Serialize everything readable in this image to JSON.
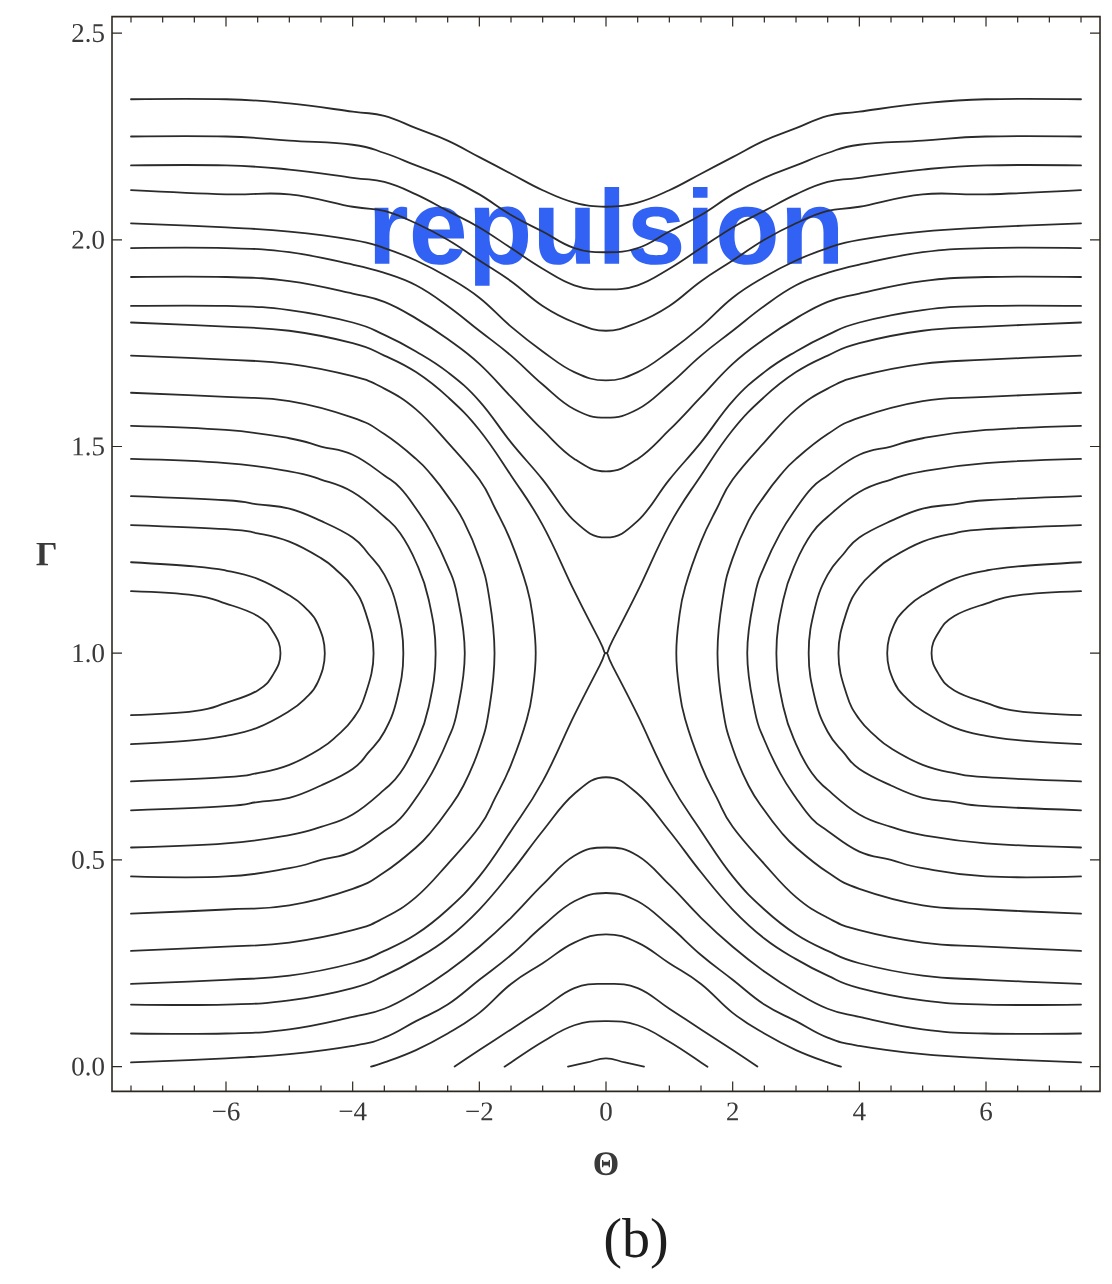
{
  "chart_data": {
    "type": "line",
    "xlabel": "Θ",
    "ylabel": "Γ",
    "annotations": [
      "repulsion",
      "(b)"
    ],
    "xlim": [
      -7.8,
      7.8
    ],
    "ylim": [
      -0.06,
      2.54
    ],
    "xticks": [
      {
        "value": -7.5,
        "label": null
      },
      {
        "value": -7,
        "label": null
      },
      {
        "value": -6.5,
        "label": null
      },
      {
        "value": -6,
        "label": "−6"
      },
      {
        "value": -5.5,
        "label": null
      },
      {
        "value": -5,
        "label": null
      },
      {
        "value": -4.5,
        "label": null
      },
      {
        "value": -4,
        "label": "−4"
      },
      {
        "value": -3.5,
        "label": null
      },
      {
        "value": -3,
        "label": null
      },
      {
        "value": -2.5,
        "label": null
      },
      {
        "value": -2,
        "label": "−2"
      },
      {
        "value": -1.5,
        "label": null
      },
      {
        "value": -1,
        "label": null
      },
      {
        "value": -0.5,
        "label": null
      },
      0,
      {
        "value": 0.5,
        "label": null
      },
      {
        "value": 1,
        "label": null
      },
      {
        "value": 1.5,
        "label": null
      },
      2,
      {
        "value": 2.5,
        "label": null
      },
      {
        "value": 3,
        "label": null
      },
      {
        "value": 3.5,
        "label": null
      },
      4,
      {
        "value": 4.5,
        "label": null
      },
      {
        "value": 5,
        "label": null
      },
      {
        "value": 5.5,
        "label": null
      },
      6,
      {
        "value": 6.5,
        "label": null
      },
      {
        "value": 7,
        "label": null
      },
      {
        "value": 7.5,
        "label": null
      }
    ],
    "yticks": [
      {
        "value": 0,
        "label": "0.0"
      },
      {
        "value": 0.5,
        "label": "0.5"
      },
      {
        "value": 1,
        "label": "1.0"
      },
      {
        "value": 1.5,
        "label": "1.5"
      },
      {
        "value": 2,
        "label": "2.0"
      },
      {
        "value": 2.5,
        "label": "2.5"
      }
    ],
    "color": "#2b2b2b",
    "x": [
      -7.5,
      -6,
      -5,
      -4,
      -3.5,
      -3,
      -2.5,
      -2,
      -1.5,
      -1,
      -0.5,
      0,
      0.5,
      1,
      1.5,
      2,
      2.5,
      3,
      3.5,
      4,
      5,
      6,
      7.5
    ],
    "series": [
      {
        "values": [
          2.34,
          2.34,
          2.33,
          2.31,
          2.3,
          2.27,
          2.24,
          2.2,
          2.16,
          2.12,
          2.09,
          2.08,
          2.09,
          2.12,
          2.16,
          2.2,
          2.24,
          2.27,
          2.3,
          2.31,
          2.33,
          2.34,
          2.34
        ]
      },
      {
        "values": [
          2.25,
          2.25,
          2.24,
          2.23,
          2.21,
          2.18,
          2.15,
          2.11,
          2.06,
          2.02,
          1.98,
          1.97,
          1.98,
          2.02,
          2.06,
          2.11,
          2.15,
          2.18,
          2.21,
          2.23,
          2.24,
          2.25,
          2.25
        ]
      },
      {
        "values": [
          2.18,
          2.18,
          2.17,
          2.15,
          2.14,
          2.11,
          2.07,
          2.03,
          1.98,
          1.93,
          1.89,
          1.88,
          1.89,
          1.93,
          1.98,
          2.03,
          2.07,
          2.11,
          2.14,
          2.15,
          2.17,
          2.18,
          2.18
        ]
      },
      {
        "values": [
          2.12,
          2.11,
          2.11,
          2.08,
          2.07,
          2.04,
          2.0,
          1.95,
          1.9,
          1.84,
          1.8,
          1.78,
          1.8,
          1.84,
          1.9,
          1.95,
          2.0,
          2.04,
          2.07,
          2.08,
          2.11,
          2.11,
          2.12
        ]
      },
      {
        "values": [
          2.04,
          2.03,
          2.02,
          2.0,
          1.98,
          1.95,
          1.91,
          1.86,
          1.79,
          1.73,
          1.68,
          1.66,
          1.68,
          1.73,
          1.79,
          1.86,
          1.91,
          1.95,
          1.98,
          2.0,
          2.02,
          2.03,
          2.04
        ]
      },
      {
        "values": [
          1.98,
          1.98,
          1.97,
          1.94,
          1.92,
          1.89,
          1.84,
          1.78,
          1.72,
          1.65,
          1.59,
          1.57,
          1.59,
          1.65,
          1.72,
          1.78,
          1.84,
          1.89,
          1.92,
          1.94,
          1.97,
          1.98,
          1.98
        ]
      },
      {
        "values": [
          1.91,
          1.91,
          1.9,
          1.87,
          1.85,
          1.81,
          1.76,
          1.7,
          1.62,
          1.54,
          1.47,
          1.44,
          1.47,
          1.54,
          1.62,
          1.7,
          1.76,
          1.81,
          1.85,
          1.87,
          1.9,
          1.91,
          1.91
        ]
      },
      {
        "values": [
          1.84,
          1.84,
          1.83,
          1.8,
          1.77,
          1.73,
          1.68,
          1.61,
          1.51,
          1.42,
          1.32,
          1.28,
          1.32,
          1.42,
          1.51,
          1.61,
          1.68,
          1.73,
          1.77,
          1.8,
          1.83,
          1.84,
          1.84
        ]
      },
      {
        "x": [
          -7.5,
          -6,
          -5,
          -4,
          -3.5,
          -3,
          -2.5,
          -2,
          -1.5,
          -1,
          -0.5,
          -0.1,
          0,
          0.1,
          0.5,
          1,
          1.5,
          2,
          2.5,
          3,
          3.5,
          4,
          5,
          6,
          7.5
        ],
        "values": [
          1.8,
          1.79,
          1.78,
          1.75,
          1.72,
          1.68,
          1.62,
          1.54,
          1.43,
          1.31,
          1.15,
          1.03,
          1.0,
          1.03,
          1.15,
          1.31,
          1.43,
          1.54,
          1.62,
          1.68,
          1.72,
          1.75,
          1.78,
          1.79,
          1.8
        ]
      },
      {
        "x": [
          -7.5,
          -6,
          -5,
          -4,
          -3.5,
          -3,
          -2.5,
          -2,
          -1.5,
          -1,
          -0.5,
          -0.1,
          0,
          0.1,
          0.5,
          1,
          1.5,
          2,
          2.5,
          3,
          3.5,
          4,
          5,
          6,
          7.5
        ],
        "values": [
          0.2,
          0.21,
          0.22,
          0.25,
          0.28,
          0.32,
          0.38,
          0.46,
          0.57,
          0.69,
          0.85,
          0.97,
          1.0,
          0.97,
          0.85,
          0.69,
          0.57,
          0.46,
          0.38,
          0.32,
          0.28,
          0.25,
          0.22,
          0.21,
          0.2
        ]
      },
      {
        "x": [
          -7.5,
          -6.5,
          -6,
          -5.5,
          -5.25,
          -5.14,
          -5.25,
          -5.5,
          -6,
          -6.5,
          -7.5
        ],
        "values": [
          1.15,
          1.14,
          1.12,
          1.09,
          1.05,
          1.0,
          0.95,
          0.91,
          0.88,
          0.86,
          0.85
        ]
      },
      {
        "x": [
          -7.5,
          -6.5,
          -6,
          -5.5,
          -5,
          -4.75,
          -4.55,
          -4.44,
          -4.55,
          -4.75,
          -5,
          -5.5,
          -6,
          -6.5,
          -7.5
        ],
        "values": [
          1.22,
          1.21,
          1.2,
          1.18,
          1.14,
          1.11,
          1.07,
          1.0,
          0.93,
          0.89,
          0.86,
          0.82,
          0.8,
          0.79,
          0.78
        ]
      },
      {
        "x": [
          -7.5,
          -6,
          -5.5,
          -5,
          -4.5,
          -4.25,
          -4,
          -3.8,
          -3.67,
          -3.8,
          -4,
          -4.25,
          -4.5,
          -5,
          -5.5,
          -6,
          -7.5
        ],
        "values": [
          1.31,
          1.3,
          1.29,
          1.27,
          1.23,
          1.2,
          1.16,
          1.1,
          1.0,
          0.9,
          0.84,
          0.8,
          0.77,
          0.73,
          0.71,
          0.7,
          0.69
        ]
      },
      {
        "x": [
          -7.5,
          -6,
          -5.5,
          -5,
          -4.5,
          -4,
          -3.75,
          -3.5,
          -3.3,
          -3.2,
          -3.3,
          -3.5,
          -3.75,
          -4,
          -4.5,
          -5,
          -5.5,
          -6,
          -7.5
        ],
        "values": [
          1.38,
          1.37,
          1.36,
          1.35,
          1.32,
          1.28,
          1.24,
          1.19,
          1.11,
          1.0,
          0.89,
          0.81,
          0.76,
          0.72,
          0.68,
          0.65,
          0.64,
          0.63,
          0.62
        ]
      },
      {
        "x": [
          -7.5,
          -6,
          -5,
          -4.5,
          -4,
          -3.5,
          -3.25,
          -3,
          -2.8,
          -2.69,
          -2.8,
          -3,
          -3.25,
          -3.5,
          -4,
          -4.5,
          -5,
          -6,
          -7.5
        ],
        "values": [
          1.47,
          1.46,
          1.44,
          1.42,
          1.39,
          1.33,
          1.29,
          1.22,
          1.13,
          1.0,
          0.87,
          0.78,
          0.71,
          0.67,
          0.61,
          0.58,
          0.56,
          0.54,
          0.53
        ]
      },
      {
        "x": [
          -7.5,
          -6,
          -5,
          -4.5,
          -4,
          -3.5,
          -3.25,
          -3,
          -2.75,
          -2.5,
          -2.35,
          -2.23,
          -2.35,
          -2.5,
          -2.75,
          -3,
          -3.25,
          -3.5,
          -4,
          -4.5,
          -5,
          -6,
          -7.5
        ],
        "values": [
          1.55,
          1.54,
          1.52,
          1.5,
          1.48,
          1.43,
          1.4,
          1.35,
          1.29,
          1.21,
          1.14,
          1.0,
          0.86,
          0.79,
          0.71,
          0.65,
          0.6,
          0.57,
          0.52,
          0.5,
          0.48,
          0.46,
          0.46
        ]
      },
      {
        "x": [
          -7.5,
          -6,
          -5,
          -4,
          -3.5,
          -3,
          -2.75,
          -2.5,
          -2.25,
          -2,
          -1.85,
          -1.76,
          -1.85,
          -2,
          -2.25,
          -2.5,
          -2.75,
          -3,
          -3.5,
          -4,
          -5,
          -6,
          -7.5
        ],
        "values": [
          1.63,
          1.62,
          1.61,
          1.57,
          1.53,
          1.47,
          1.43,
          1.38,
          1.32,
          1.23,
          1.14,
          1.0,
          0.86,
          0.77,
          0.68,
          0.62,
          0.57,
          0.53,
          0.47,
          0.43,
          0.39,
          0.38,
          0.37
        ]
      },
      {
        "x": [
          -7.5,
          -6,
          -5,
          -4,
          -3.5,
          -3,
          -2.5,
          -2,
          -1.75,
          -1.5,
          -1.25,
          -1.15,
          -1.11,
          -1.15,
          -1.25,
          -1.5,
          -1.75,
          -2,
          -2.5,
          -3,
          -3.5,
          -4,
          -5,
          -6,
          -7.5
        ],
        "values": [
          1.72,
          1.71,
          1.7,
          1.67,
          1.64,
          1.59,
          1.51,
          1.42,
          1.35,
          1.27,
          1.16,
          1.08,
          1.0,
          0.92,
          0.84,
          0.73,
          0.65,
          0.58,
          0.49,
          0.41,
          0.36,
          0.33,
          0.3,
          0.29,
          0.28
        ]
      },
      {
        "x": [
          7.5,
          6.5,
          6,
          5.5,
          5.25,
          5.14,
          5.25,
          5.5,
          6,
          6.5,
          7.5
        ],
        "values": [
          1.15,
          1.14,
          1.12,
          1.09,
          1.05,
          1.0,
          0.95,
          0.91,
          0.88,
          0.86,
          0.85
        ]
      },
      {
        "x": [
          7.5,
          6.5,
          6,
          5.5,
          5,
          4.75,
          4.55,
          4.44,
          4.55,
          4.75,
          5,
          5.5,
          6,
          6.5,
          7.5
        ],
        "values": [
          1.22,
          1.21,
          1.2,
          1.18,
          1.14,
          1.11,
          1.07,
          1.0,
          0.93,
          0.89,
          0.86,
          0.82,
          0.8,
          0.79,
          0.78
        ]
      },
      {
        "x": [
          7.5,
          6,
          5.5,
          5,
          4.5,
          4.25,
          4,
          3.8,
          3.67,
          3.8,
          4,
          4.25,
          4.5,
          5,
          5.5,
          6,
          7.5
        ],
        "values": [
          1.31,
          1.3,
          1.29,
          1.27,
          1.23,
          1.2,
          1.16,
          1.1,
          1.0,
          0.9,
          0.84,
          0.8,
          0.77,
          0.73,
          0.71,
          0.7,
          0.69
        ]
      },
      {
        "x": [
          7.5,
          6,
          5.5,
          5,
          4.5,
          4,
          3.75,
          3.5,
          3.3,
          3.2,
          3.3,
          3.5,
          3.75,
          4,
          4.5,
          5,
          5.5,
          6,
          7.5
        ],
        "values": [
          1.38,
          1.37,
          1.36,
          1.35,
          1.32,
          1.28,
          1.24,
          1.19,
          1.11,
          1.0,
          0.89,
          0.81,
          0.76,
          0.72,
          0.68,
          0.65,
          0.64,
          0.63,
          0.62
        ]
      },
      {
        "x": [
          7.5,
          6,
          5,
          4.5,
          4,
          3.5,
          3.25,
          3,
          2.8,
          2.69,
          2.8,
          3,
          3.25,
          3.5,
          4,
          4.5,
          5,
          6,
          7.5
        ],
        "values": [
          1.47,
          1.46,
          1.44,
          1.42,
          1.39,
          1.33,
          1.29,
          1.22,
          1.13,
          1.0,
          0.87,
          0.78,
          0.71,
          0.67,
          0.61,
          0.58,
          0.56,
          0.54,
          0.53
        ]
      },
      {
        "x": [
          7.5,
          6,
          5,
          4.5,
          4,
          3.5,
          3.25,
          3,
          2.75,
          2.5,
          2.35,
          2.23,
          2.35,
          2.5,
          2.75,
          3,
          3.25,
          3.5,
          4,
          4.5,
          5,
          6,
          7.5
        ],
        "values": [
          1.55,
          1.54,
          1.52,
          1.5,
          1.48,
          1.43,
          1.4,
          1.35,
          1.29,
          1.21,
          1.14,
          1.0,
          0.86,
          0.79,
          0.71,
          0.65,
          0.6,
          0.57,
          0.52,
          0.5,
          0.48,
          0.46,
          0.46
        ]
      },
      {
        "x": [
          7.5,
          6,
          5,
          4,
          3.5,
          3,
          2.75,
          2.5,
          2.25,
          2,
          1.85,
          1.76,
          1.85,
          2,
          2.25,
          2.5,
          2.75,
          3,
          3.5,
          4,
          5,
          6,
          7.5
        ],
        "values": [
          1.63,
          1.62,
          1.61,
          1.57,
          1.53,
          1.47,
          1.43,
          1.38,
          1.32,
          1.23,
          1.14,
          1.0,
          0.86,
          0.77,
          0.68,
          0.62,
          0.57,
          0.53,
          0.47,
          0.43,
          0.39,
          0.38,
          0.37
        ]
      },
      {
        "x": [
          7.5,
          6,
          5,
          4,
          3.5,
          3,
          2.5,
          2,
          1.75,
          1.5,
          1.25,
          1.15,
          1.11,
          1.15,
          1.25,
          1.5,
          1.75,
          2,
          2.5,
          3,
          3.5,
          4,
          5,
          6,
          7.5
        ],
        "values": [
          1.72,
          1.71,
          1.7,
          1.67,
          1.64,
          1.59,
          1.51,
          1.42,
          1.35,
          1.27,
          1.16,
          1.08,
          1.0,
          0.92,
          0.84,
          0.73,
          0.65,
          0.58,
          0.49,
          0.41,
          0.36,
          0.33,
          0.3,
          0.29,
          0.28
        ]
      },
      {
        "values": [
          0.15,
          0.15,
          0.16,
          0.19,
          0.22,
          0.26,
          0.31,
          0.38,
          0.47,
          0.57,
          0.66,
          0.7,
          0.66,
          0.57,
          0.47,
          0.38,
          0.31,
          0.26,
          0.22,
          0.19,
          0.16,
          0.15,
          0.15
        ]
      },
      {
        "values": [
          0.08,
          0.08,
          0.09,
          0.12,
          0.14,
          0.18,
          0.23,
          0.29,
          0.36,
          0.44,
          0.51,
          0.53,
          0.51,
          0.44,
          0.36,
          0.29,
          0.23,
          0.18,
          0.14,
          0.12,
          0.09,
          0.08,
          0.08
        ]
      },
      {
        "values": [
          0.01,
          0.02,
          0.03,
          0.05,
          0.07,
          0.11,
          0.15,
          0.21,
          0.27,
          0.34,
          0.4,
          0.42,
          0.4,
          0.34,
          0.27,
          0.21,
          0.15,
          0.11,
          0.07,
          0.05,
          0.03,
          0.02,
          0.01
        ]
      },
      {
        "x": [
          -3.71,
          -3.5,
          -3,
          -2.5,
          -2,
          -1.5,
          -1,
          -0.5,
          0,
          0.5,
          1,
          1.5,
          2,
          2.5,
          3,
          3.5,
          3.71
        ],
        "values": [
          0,
          0.01,
          0.04,
          0.08,
          0.13,
          0.2,
          0.25,
          0.3,
          0.32,
          0.3,
          0.25,
          0.2,
          0.13,
          0.08,
          0.04,
          0.01,
          0
        ]
      },
      {
        "x": [
          -2.39,
          -2,
          -1.5,
          -1,
          -0.5,
          0,
          0.5,
          1,
          1.5,
          2,
          2.39
        ],
        "values": [
          0,
          0.04,
          0.09,
          0.14,
          0.19,
          0.2,
          0.19,
          0.14,
          0.09,
          0.04,
          0
        ]
      },
      {
        "x": [
          -1.6,
          -1.5,
          -1,
          -0.5,
          0,
          0.5,
          1,
          1.5,
          1.6
        ],
        "values": [
          0,
          0.01,
          0.06,
          0.1,
          0.11,
          0.1,
          0.06,
          0.01,
          0
        ]
      },
      {
        "x": [
          -0.6,
          -0.3,
          0,
          0.3,
          0.6
        ],
        "values": [
          0,
          0.01,
          0.02,
          0.01,
          0
        ]
      }
    ]
  }
}
